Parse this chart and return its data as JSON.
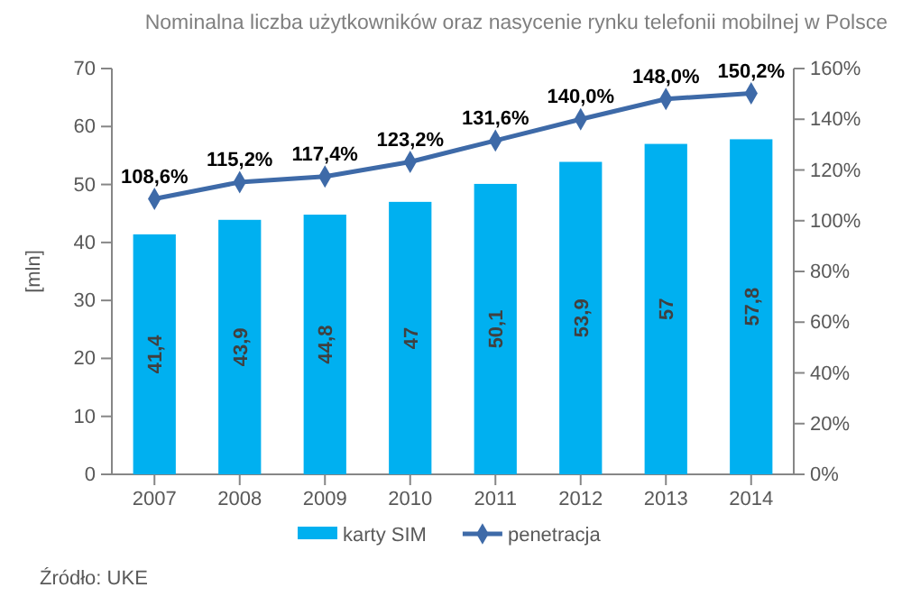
{
  "chart_data": {
    "type": "bar",
    "title": "Nominalna liczba użytkowników oraz nasycenie rynku telefonii mobilnej w Polsce",
    "ylabel": "[mln]",
    "categories": [
      "2007",
      "2008",
      "2009",
      "2010",
      "2011",
      "2012",
      "2013",
      "2014"
    ],
    "series": [
      {
        "name": "karty SIM",
        "color": "#00b0f0",
        "values": [
          41.4,
          43.9,
          44.8,
          47,
          50.1,
          53.9,
          57,
          57.8
        ],
        "value_labels": [
          "41,4",
          "43,9",
          "44,8",
          "47",
          "50,1",
          "53,9",
          "57",
          "57,8"
        ]
      },
      {
        "name": "penetracja",
        "type": "line",
        "axis": "y2",
        "color": "#3e6aa8",
        "marker": "diamond",
        "values": [
          108.6,
          115.2,
          117.4,
          123.2,
          131.6,
          140.0,
          148.0,
          150.2
        ],
        "value_labels": [
          "108,6%",
          "115,2%",
          "117,4%",
          "123,2%",
          "131,6%",
          "140,0%",
          "148,0%",
          "150,2%"
        ]
      }
    ],
    "ylim": [
      0,
      70
    ],
    "yticks": [
      0,
      10,
      20,
      30,
      40,
      50,
      60,
      70
    ],
    "y2lim": [
      0,
      160
    ],
    "y2ticks": [
      {
        "value": 0,
        "label": "0%"
      },
      {
        "value": 20,
        "label": "20%"
      },
      {
        "value": 40,
        "label": "40%"
      },
      {
        "value": 60,
        "label": "60%"
      },
      {
        "value": 80,
        "label": "80%"
      },
      {
        "value": 100,
        "label": "100%"
      },
      {
        "value": 120,
        "label": "120%"
      },
      {
        "value": 140,
        "label": "140%"
      },
      {
        "value": 160,
        "label": "160%"
      }
    ],
    "legend": "bottom",
    "annotations": [
      "Źródło: UKE"
    ]
  }
}
